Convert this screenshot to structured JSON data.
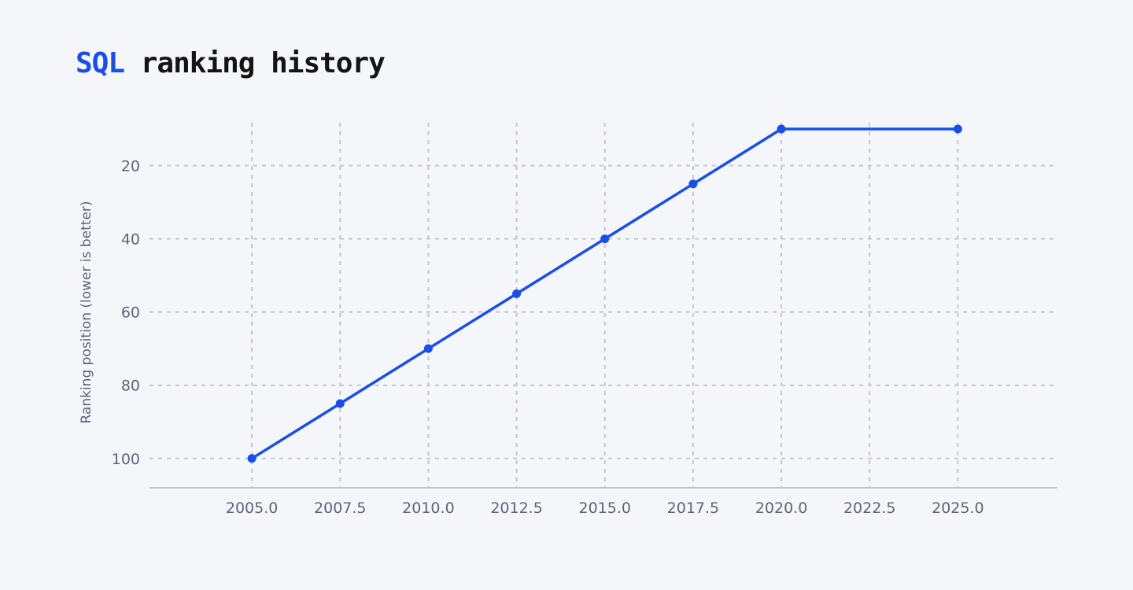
{
  "title": {
    "accent": "SQL",
    "rest": "ranking history"
  },
  "colors": {
    "background": "#f4f6fa",
    "accent": "#1a4fe6",
    "line": "#1a4fe6",
    "grid": "#c3c6d4",
    "axis": "#bfc3cf",
    "tick_text": "#5f6478",
    "title_text": "#141414"
  },
  "chart_data": {
    "type": "line",
    "title": "SQL ranking history",
    "xlabel": "",
    "ylabel": "Ranking position (lower is better)",
    "y_inverted": true,
    "xlim": [
      2002.1,
      2027.8
    ],
    "ylim": [
      7,
      108
    ],
    "xticks": [
      2005.0,
      2007.5,
      2010.0,
      2012.5,
      2015.0,
      2017.5,
      2020.0,
      2022.5,
      2025.0
    ],
    "xtick_labels": [
      "2005.0",
      "2007.5",
      "2010.0",
      "2012.5",
      "2015.0",
      "2017.5",
      "2020.0",
      "2022.5",
      "2025.0"
    ],
    "yticks": [
      20,
      40,
      60,
      80,
      100
    ],
    "ytick_labels": [
      "20",
      "40",
      "60",
      "80",
      "100"
    ],
    "grid": true,
    "legend": false,
    "series": [
      {
        "x": [
          2005,
          2007.5,
          2010,
          2012.5,
          2015,
          2017.5,
          2020,
          2025
        ],
        "values": [
          100,
          85,
          70,
          55,
          40,
          25,
          10,
          10
        ]
      }
    ]
  }
}
